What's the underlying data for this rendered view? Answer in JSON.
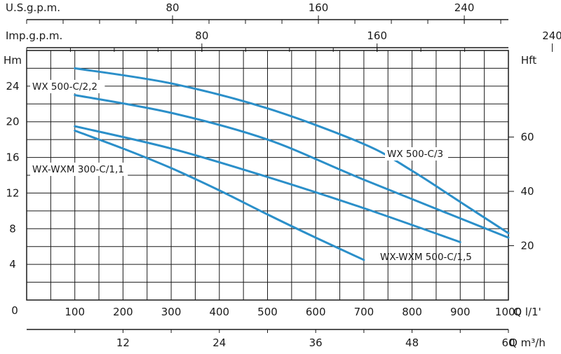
{
  "chart_data": {
    "type": "line",
    "x_unit_label": "Q l/1'",
    "x_range": [
      0,
      1000
    ],
    "x_ticks": [
      0,
      100,
      200,
      300,
      400,
      500,
      600,
      700,
      800,
      900,
      1000
    ],
    "y_unit_label": "Hm",
    "y_range": [
      0,
      28
    ],
    "y_ticks": [
      4,
      8,
      12,
      16,
      20,
      24
    ],
    "y_zero_label": "0",
    "right_axis": {
      "label": "Hft",
      "ticks": [
        20,
        40,
        60
      ]
    },
    "top_axes": [
      {
        "label": "U.S.g.p.m.",
        "ticks": [
          80,
          160,
          240
        ]
      },
      {
        "label": "Imp.g.p.m.",
        "ticks": [
          80,
          160,
          240
        ]
      }
    ],
    "bottom_axis2": {
      "label": "Q m³/h",
      "ticks": [
        12,
        24,
        36,
        48,
        60
      ]
    },
    "grid": true,
    "series": [
      {
        "name": "WX 500-C/2,2",
        "x": [
          100,
          300,
          500,
          700,
          1000
        ],
        "y": [
          23,
          21,
          18,
          13.5,
          7
        ]
      },
      {
        "name": "WX 500-C/3",
        "x": [
          100,
          300,
          500,
          700,
          800,
          900,
          1000
        ],
        "y": [
          26,
          24.3,
          21.5,
          17.5,
          14.5,
          11,
          7.5
        ]
      },
      {
        "name": "WX-WXM 300-C/1,1",
        "x": [
          100,
          200,
          300,
          400,
          500,
          600,
          700
        ],
        "y": [
          19,
          17,
          14.8,
          12.3,
          9.6,
          7,
          4.5
        ]
      },
      {
        "name": "WX-WXM 500-C/1,5",
        "x": [
          100,
          300,
          500,
          700,
          900
        ],
        "y": [
          19.5,
          17,
          13.8,
          10.3,
          6.5
        ]
      }
    ],
    "colors": {
      "curve": "#2b8fc9",
      "grid": "#1a1a1a"
    }
  }
}
